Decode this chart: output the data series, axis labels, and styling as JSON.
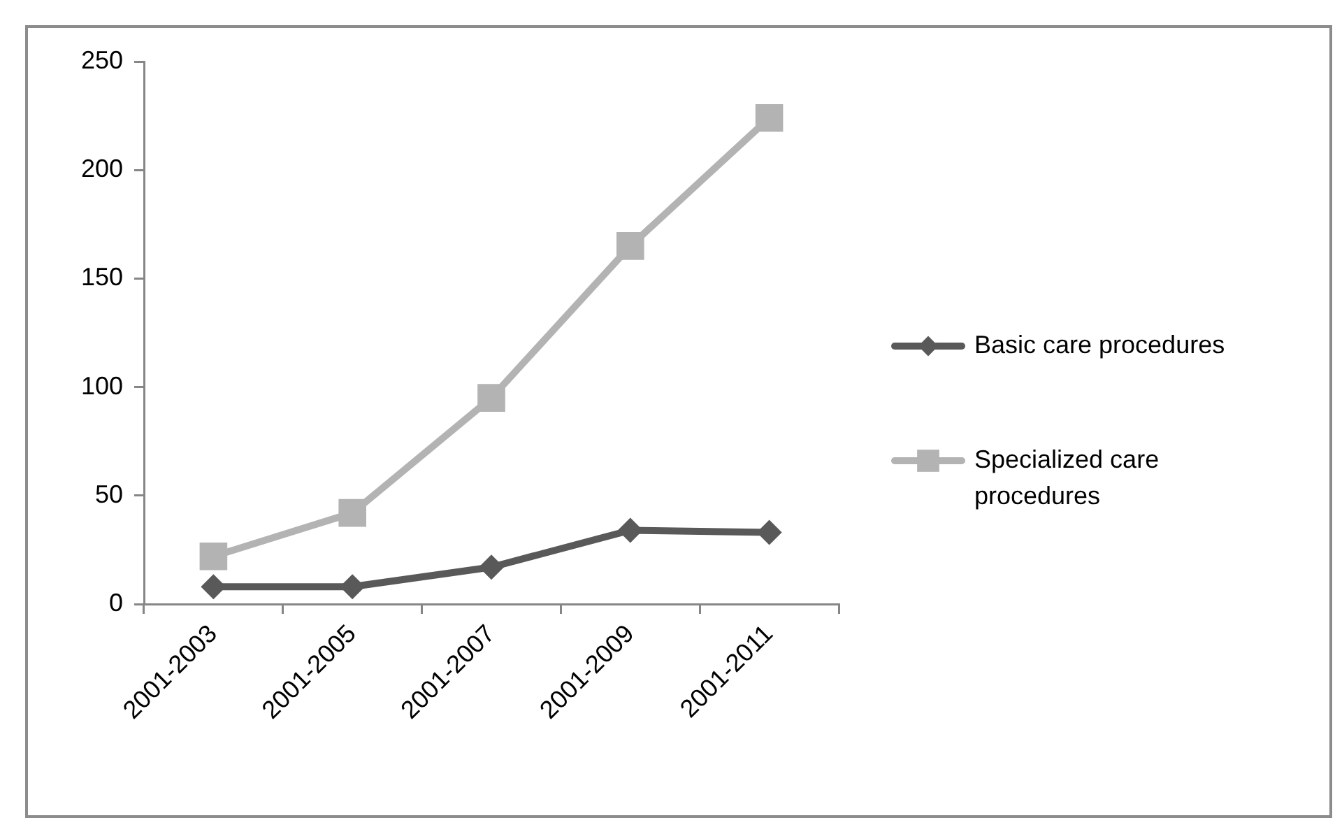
{
  "chart_data": {
    "type": "line",
    "categories": [
      "2001-2003",
      "2001-2005",
      "2001-2007",
      "2001-2009",
      "2001-2011"
    ],
    "series": [
      {
        "name": "Basic care procedures",
        "color": "#595959",
        "marker": "diamond",
        "values": [
          8,
          8,
          17,
          34,
          33
        ]
      },
      {
        "name": "Specialized care procedures",
        "color": "#b3b3b3",
        "marker": "square",
        "values": [
          22,
          42,
          95,
          165,
          224
        ]
      }
    ],
    "ylim": [
      0,
      250
    ],
    "yticks": [
      0,
      50,
      100,
      150,
      200,
      250
    ],
    "grid": false,
    "legend": "right"
  }
}
